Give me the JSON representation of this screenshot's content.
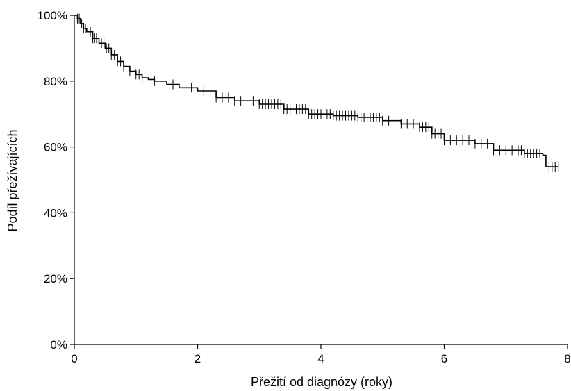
{
  "chart_data": {
    "type": "line",
    "title": "",
    "xlabel": "Přežití od diagnózy (roky)",
    "ylabel": "Podíl přežívajících",
    "xlim": [
      0,
      8
    ],
    "ylim": [
      0,
      100
    ],
    "x_ticks": [
      0,
      2,
      4,
      6,
      8
    ],
    "y_ticks": [
      0,
      20,
      40,
      60,
      80,
      100
    ],
    "x_tick_labels": [
      "0",
      "2",
      "4",
      "6",
      "8"
    ],
    "y_tick_labels": [
      "0%",
      "20%",
      "40%",
      "60%",
      "80%",
      "100%"
    ],
    "grid": false,
    "legend": "none",
    "line_color": "#000000",
    "series": [
      {
        "step": true,
        "x": [
          0,
          0.05,
          0.1,
          0.15,
          0.2,
          0.3,
          0.4,
          0.5,
          0.6,
          0.7,
          0.8,
          0.9,
          1.0,
          1.1,
          1.2,
          1.3,
          1.5,
          1.7,
          2.0,
          2.3,
          2.6,
          3.0,
          3.4,
          3.8,
          4.2,
          4.6,
          5.0,
          5.3,
          5.6,
          5.8,
          6.0,
          6.5,
          6.8,
          7.3,
          7.6,
          7.65,
          7.85
        ],
        "y": [
          100,
          99,
          97.5,
          96,
          95,
          93,
          91.5,
          90,
          88,
          86,
          84.5,
          83,
          82,
          81,
          80.5,
          80,
          79,
          78,
          77,
          75,
          74,
          73,
          71.5,
          70,
          69.5,
          69,
          68,
          67,
          66,
          64,
          62,
          61,
          59,
          58,
          57.5,
          54,
          54
        ]
      }
    ],
    "censor_marks": {
      "x": [
        0.05,
        0.08,
        0.12,
        0.15,
        0.18,
        0.22,
        0.26,
        0.3,
        0.33,
        0.36,
        0.4,
        0.44,
        0.48,
        0.52,
        0.56,
        0.6,
        0.65,
        0.7,
        0.75,
        0.8,
        0.9,
        1.0,
        1.05,
        1.1,
        1.3,
        1.6,
        1.9,
        2.1,
        2.3,
        2.4,
        2.5,
        2.6,
        2.7,
        2.8,
        2.9,
        3.0,
        3.05,
        3.1,
        3.15,
        3.2,
        3.25,
        3.3,
        3.35,
        3.4,
        3.45,
        3.5,
        3.6,
        3.65,
        3.7,
        3.75,
        3.8,
        3.85,
        3.9,
        3.95,
        4.0,
        4.05,
        4.1,
        4.15,
        4.2,
        4.25,
        4.3,
        4.35,
        4.4,
        4.45,
        4.5,
        4.55,
        4.6,
        4.65,
        4.7,
        4.75,
        4.8,
        4.85,
        4.9,
        4.95,
        5.0,
        5.1,
        5.2,
        5.3,
        5.4,
        5.5,
        5.6,
        5.65,
        5.7,
        5.75,
        5.8,
        5.85,
        5.9,
        5.95,
        6.0,
        6.1,
        6.2,
        6.3,
        6.4,
        6.5,
        6.6,
        6.7,
        6.8,
        6.9,
        7.0,
        7.1,
        7.2,
        7.25,
        7.3,
        7.35,
        7.4,
        7.45,
        7.5,
        7.55,
        7.6,
        7.7,
        7.75,
        7.8,
        7.85
      ]
    }
  }
}
